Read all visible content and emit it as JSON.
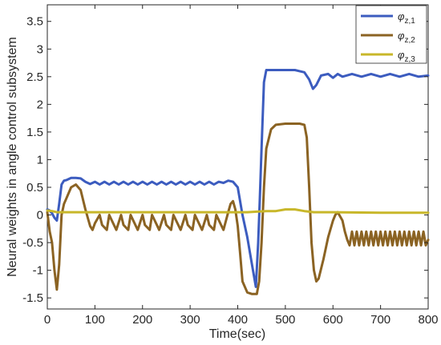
{
  "chart_data": {
    "type": "line",
    "xlabel": "Time(sec)",
    "ylabel": "Neural weights in angle control subsystem",
    "xlim": [
      0,
      800
    ],
    "ylim": [
      -1.7,
      3.8
    ],
    "xticks": [
      0,
      100,
      200,
      300,
      400,
      500,
      600,
      700,
      800
    ],
    "yticks": [
      -1.5,
      -1,
      -0.5,
      0,
      0.5,
      1,
      1.5,
      2,
      2.5,
      3,
      3.5
    ],
    "grid": false,
    "legend_position": "top-right",
    "series": [
      {
        "name": "φz,1",
        "legend": {
          "base": "φ",
          "sub": "z,1"
        },
        "color": "#3c5cbf",
        "x": [
          0,
          5,
          10,
          15,
          20,
          25,
          30,
          35,
          40,
          50,
          60,
          70,
          80,
          90,
          100,
          110,
          120,
          130,
          140,
          150,
          160,
          170,
          180,
          190,
          200,
          210,
          220,
          230,
          240,
          250,
          260,
          270,
          280,
          290,
          300,
          310,
          320,
          330,
          340,
          350,
          360,
          370,
          380,
          390,
          400,
          410,
          420,
          430,
          438,
          443,
          446,
          450,
          455,
          460,
          470,
          480,
          500,
          520,
          530,
          540,
          550,
          558,
          565,
          575,
          590,
          600,
          610,
          620,
          640,
          660,
          680,
          700,
          720,
          740,
          760,
          780,
          800
        ],
        "y": [
          0.1,
          0.08,
          0.03,
          -0.05,
          -0.1,
          0.2,
          0.55,
          0.62,
          0.63,
          0.67,
          0.67,
          0.66,
          0.6,
          0.56,
          0.6,
          0.55,
          0.6,
          0.55,
          0.6,
          0.55,
          0.6,
          0.55,
          0.6,
          0.55,
          0.6,
          0.55,
          0.6,
          0.55,
          0.6,
          0.55,
          0.6,
          0.55,
          0.6,
          0.55,
          0.6,
          0.55,
          0.6,
          0.55,
          0.6,
          0.55,
          0.6,
          0.58,
          0.62,
          0.6,
          0.5,
          0.0,
          -0.4,
          -0.9,
          -1.3,
          -0.5,
          0.2,
          1.2,
          2.4,
          2.62,
          2.62,
          2.62,
          2.62,
          2.62,
          2.6,
          2.58,
          2.45,
          2.28,
          2.35,
          2.52,
          2.55,
          2.48,
          2.55,
          2.5,
          2.55,
          2.5,
          2.55,
          2.5,
          2.55,
          2.5,
          2.55,
          2.5,
          2.52
        ]
      },
      {
        "name": "φz,2",
        "legend": {
          "base": "φ",
          "sub": "z,2"
        },
        "color": "#8b6323",
        "x": [
          0,
          5,
          10,
          15,
          20,
          25,
          30,
          35,
          40,
          50,
          60,
          70,
          80,
          90,
          95,
          100,
          110,
          115,
          125,
          130,
          140,
          145,
          155,
          160,
          170,
          175,
          185,
          190,
          200,
          205,
          215,
          220,
          230,
          235,
          245,
          250,
          260,
          265,
          275,
          280,
          290,
          295,
          305,
          310,
          320,
          325,
          335,
          340,
          350,
          355,
          365,
          370,
          380,
          385,
          390,
          395,
          400,
          405,
          410,
          420,
          430,
          440,
          445,
          450,
          455,
          460,
          470,
          480,
          500,
          520,
          530,
          540,
          545,
          550,
          555,
          560,
          565,
          570,
          580,
          590,
          600,
          605,
          610,
          620,
          625,
          630,
          635,
          640,
          645,
          650,
          655,
          660,
          665,
          670,
          675,
          680,
          685,
          690,
          695,
          700,
          705,
          710,
          715,
          720,
          725,
          730,
          735,
          740,
          745,
          750,
          755,
          760,
          765,
          770,
          775,
          780,
          785,
          790,
          795,
          800
        ],
        "y": [
          0.05,
          -0.3,
          -0.5,
          -1.0,
          -1.35,
          -0.9,
          0.0,
          0.2,
          0.3,
          0.5,
          0.55,
          0.45,
          0.1,
          -0.2,
          -0.27,
          -0.15,
          0.0,
          -0.18,
          -0.27,
          0.0,
          -0.18,
          -0.27,
          0.0,
          -0.18,
          -0.27,
          0.0,
          -0.18,
          -0.27,
          0.0,
          -0.18,
          -0.27,
          0.0,
          -0.18,
          -0.27,
          0.0,
          -0.18,
          -0.27,
          0.0,
          -0.18,
          -0.27,
          0.0,
          -0.18,
          -0.27,
          0.0,
          -0.18,
          -0.27,
          0.0,
          -0.18,
          -0.27,
          0.0,
          -0.18,
          -0.27,
          0.05,
          0.2,
          0.25,
          0.1,
          -0.2,
          -0.7,
          -1.2,
          -1.4,
          -1.43,
          -1.43,
          -1.2,
          -0.5,
          0.5,
          1.2,
          1.55,
          1.63,
          1.65,
          1.65,
          1.65,
          1.63,
          1.4,
          0.5,
          -0.5,
          -1.0,
          -1.2,
          -1.15,
          -0.8,
          -0.4,
          -0.1,
          0.0,
          0.05,
          -0.1,
          -0.3,
          -0.45,
          -0.55,
          -0.3,
          -0.55,
          -0.3,
          -0.55,
          -0.3,
          -0.55,
          -0.3,
          -0.55,
          -0.3,
          -0.55,
          -0.3,
          -0.55,
          -0.3,
          -0.55,
          -0.3,
          -0.55,
          -0.3,
          -0.55,
          -0.3,
          -0.55,
          -0.3,
          -0.55,
          -0.3,
          -0.55,
          -0.3,
          -0.55,
          -0.3,
          -0.55,
          -0.3,
          -0.55,
          -0.3,
          -0.55,
          -0.45
        ]
      },
      {
        "name": "φz,3",
        "legend": {
          "base": "φ",
          "sub": "z,3"
        },
        "color": "#c8b72a",
        "x": [
          0,
          10,
          20,
          40,
          100,
          200,
          300,
          400,
          420,
          440,
          460,
          480,
          500,
          520,
          540,
          560,
          600,
          700,
          800
        ],
        "y": [
          0.08,
          0.07,
          0.05,
          0.05,
          0.05,
          0.05,
          0.05,
          0.05,
          0.05,
          0.06,
          0.07,
          0.07,
          0.1,
          0.1,
          0.07,
          0.05,
          0.05,
          0.04,
          0.04
        ]
      }
    ]
  }
}
